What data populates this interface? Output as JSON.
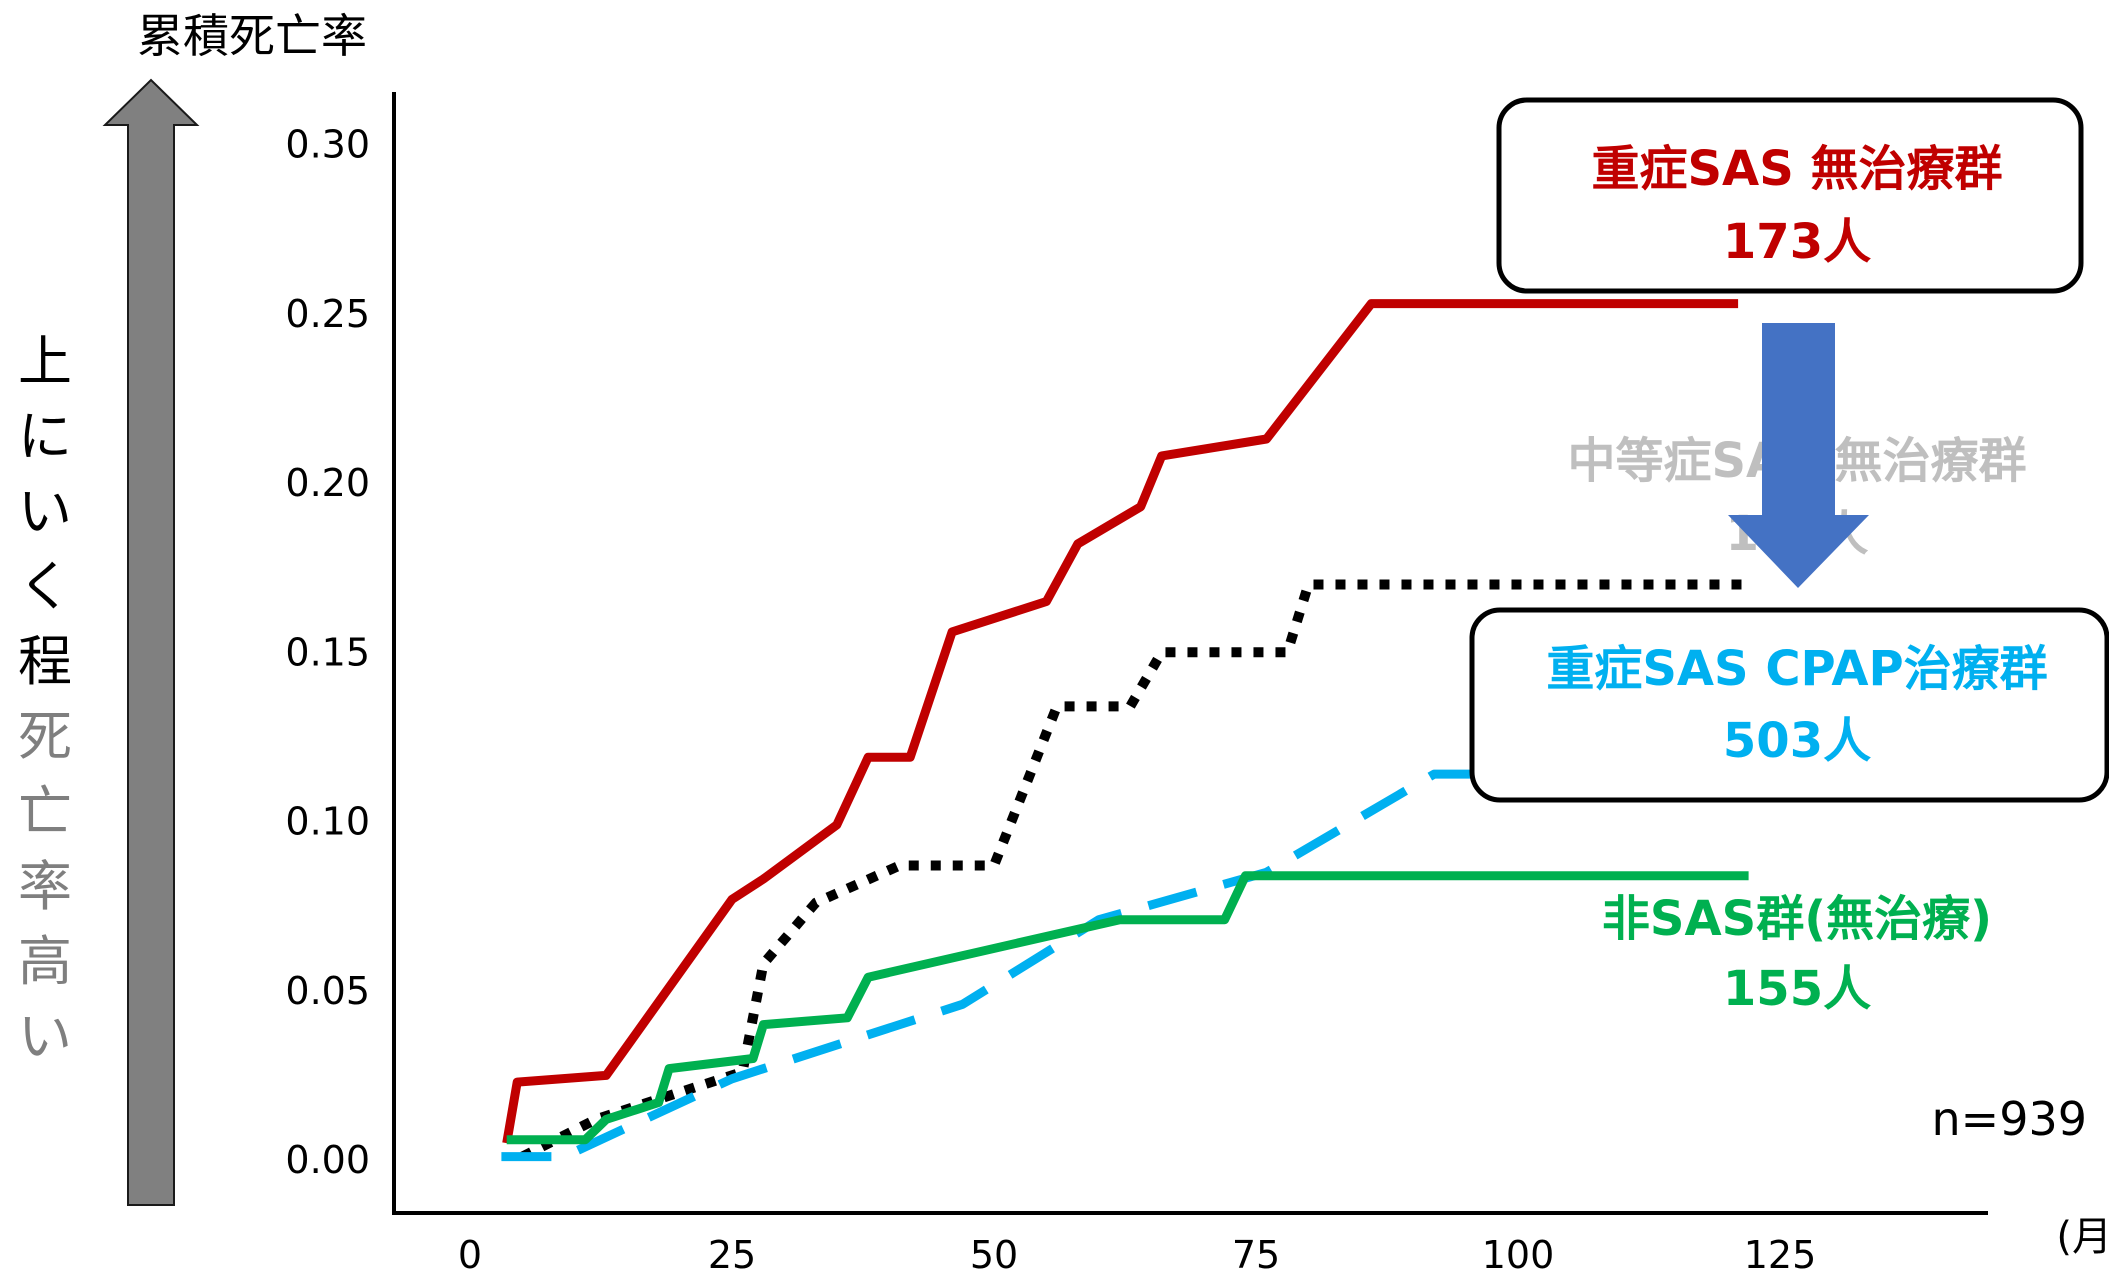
{
  "chart_data": {
    "type": "line",
    "ylabel": "累積死亡率",
    "y_note_dark": "上にいく程",
    "y_note_light": "死亡率高い",
    "x_unit": "(月)",
    "n_label": "n=939",
    "xlim": [
      0,
      145
    ],
    "ylim": [
      0,
      0.31
    ],
    "x_ticks": [
      "0",
      "25",
      "50",
      "75",
      "100",
      "125"
    ],
    "x_tick_values": [
      0,
      25,
      50,
      75,
      100,
      125
    ],
    "y_ticks": [
      "0.00",
      "0.05",
      "0.10",
      "0.15",
      "0.20",
      "0.25",
      "0.30"
    ],
    "y_tick_values": [
      0,
      0.05,
      0.1,
      0.15,
      0.2,
      0.25,
      0.3
    ],
    "series": [
      {
        "name": "重症SAS 無治療群",
        "count": "173人",
        "color": "#c00000",
        "style": "solid",
        "points": [
          [
            3.5,
            0.005
          ],
          [
            4.5,
            0.023
          ],
          [
            13,
            0.025
          ],
          [
            25,
            0.077
          ],
          [
            28,
            0.083
          ],
          [
            35,
            0.099
          ],
          [
            38,
            0.119
          ],
          [
            42,
            0.119
          ],
          [
            46,
            0.156
          ],
          [
            55,
            0.165
          ],
          [
            58,
            0.182
          ],
          [
            64,
            0.193
          ],
          [
            66,
            0.208
          ],
          [
            76,
            0.213
          ],
          [
            86,
            0.253
          ],
          [
            121,
            0.253
          ]
        ]
      },
      {
        "name": "中等症SAS 無治療群",
        "count": "10?人",
        "color": "#000000",
        "style": "dotted",
        "points": [
          [
            5,
            0.001
          ],
          [
            12,
            0.012
          ],
          [
            26,
            0.026
          ],
          [
            28,
            0.058
          ],
          [
            33,
            0.076
          ],
          [
            41,
            0.087
          ],
          [
            50,
            0.087
          ],
          [
            56,
            0.134
          ],
          [
            63,
            0.134
          ],
          [
            66,
            0.15
          ],
          [
            78,
            0.15
          ],
          [
            80,
            0.17
          ],
          [
            122,
            0.17
          ]
        ]
      },
      {
        "name": "重症SAS CPAP治療群",
        "count": "503人",
        "color": "#00b0f0",
        "style": "dashed",
        "points": [
          [
            3,
            0.001
          ],
          [
            9,
            0.001
          ],
          [
            25,
            0.024
          ],
          [
            47,
            0.046
          ],
          [
            60,
            0.071
          ],
          [
            76,
            0.085
          ],
          [
            92,
            0.114
          ],
          [
            121,
            0.114
          ]
        ]
      },
      {
        "name": "非SAS群(無治療)",
        "count": "155人",
        "color": "#00b050",
        "style": "solid",
        "points": [
          [
            3.5,
            0.006
          ],
          [
            11,
            0.006
          ],
          [
            13,
            0.012
          ],
          [
            18,
            0.017
          ],
          [
            19,
            0.027
          ],
          [
            27,
            0.03
          ],
          [
            28,
            0.04
          ],
          [
            36,
            0.042
          ],
          [
            38,
            0.054
          ],
          [
            62,
            0.071
          ],
          [
            72,
            0.071
          ],
          [
            74,
            0.084
          ],
          [
            122,
            0.084
          ]
        ]
      }
    ]
  },
  "colors": {
    "arrow_gray": "#808080",
    "arrow_blue": "#4472c4",
    "faded_label": "#bfbfbf",
    "faded_axis_note": "#7f7f7f"
  }
}
